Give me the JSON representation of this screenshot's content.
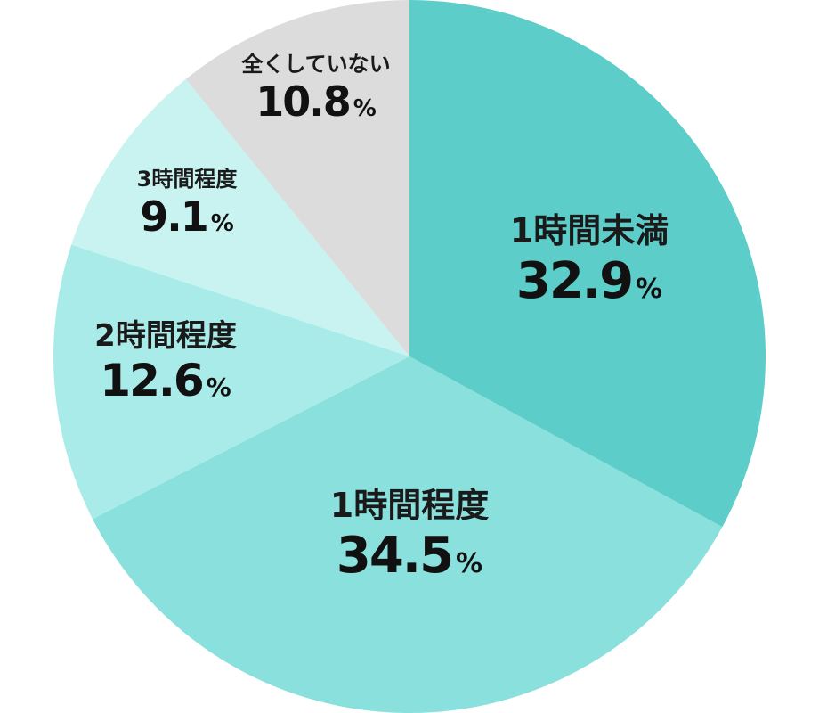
{
  "chart_data": {
    "type": "pie",
    "start_angle_deg": 0,
    "direction": "clockwise",
    "unit": "%",
    "slices": [
      {
        "label": "1時間未満",
        "value": 32.9,
        "value_text": "32.9",
        "color": "#5ccdc8"
      },
      {
        "label": "1時間程度",
        "value": 34.5,
        "value_text": "34.5",
        "color": "#89e0dc"
      },
      {
        "label": "2時間程度",
        "value": 12.6,
        "value_text": "12.6",
        "color": "#a9ebe8"
      },
      {
        "label": "3時間程度",
        "value": 9.1,
        "value_text": "9.1",
        "color": "#c8f3f1"
      },
      {
        "label": "全くしていない",
        "value": 10.8,
        "value_text": "10.8",
        "color": "#dcdcdc"
      }
    ]
  }
}
